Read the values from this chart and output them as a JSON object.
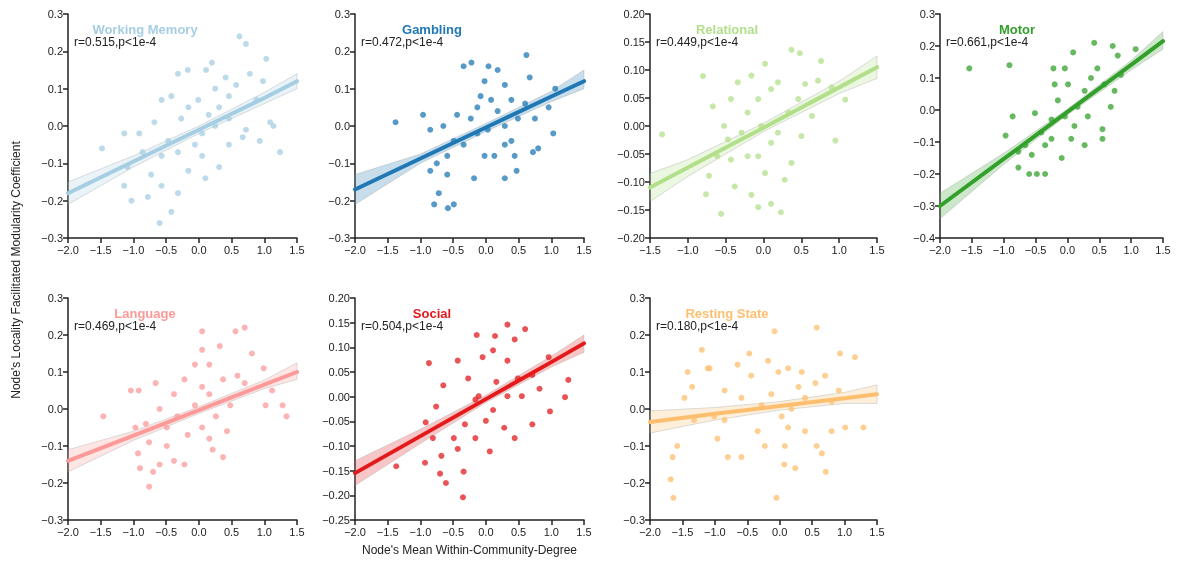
{
  "chart_data": [
    {
      "type": "scatter",
      "title": "Working Memory",
      "annotations": [
        "r=0.515,p<1e-4"
      ],
      "ylabel": "Node's Locality Facilitated Modularity Coefficient",
      "xlim": [
        -2,
        1.5
      ],
      "xticks": [
        {
          "value": -2,
          "label": "−2.0"
        },
        {
          "value": -1.5,
          "label": "−1.5"
        },
        {
          "value": -1,
          "label": "−1.0"
        },
        {
          "value": -0.5,
          "label": "−0.5"
        },
        {
          "value": 0,
          "label": "0.0"
        },
        {
          "value": 0.5,
          "label": "0.5"
        },
        {
          "value": 1,
          "label": "1.0"
        },
        {
          "value": 1.5,
          "label": "1.5"
        }
      ],
      "ylim": [
        -0.3,
        0.3
      ],
      "yticks": [
        {
          "value": -0.3,
          "label": "−0.3"
        },
        {
          "value": -0.2,
          "label": "−0.2"
        },
        {
          "value": -0.1,
          "label": "−0.1"
        },
        {
          "value": 0,
          "label": "0.0"
        },
        0.1,
        0.2,
        0.3
      ],
      "series": [
        {
          "marker": "circle",
          "color": "#a6cee3",
          "x": [
            0.62,
            0.72,
            1.03,
            1.24,
            -1.48,
            -1.14,
            -1.03,
            -0.6,
            -0.42,
            -1.14,
            0.2,
            -0.17,
            -0.32,
            0.11,
            -0.57,
            -0.42,
            -0.68,
            -0.91,
            -0.86,
            -0.57,
            -0.32,
            -0.06,
            0.05,
            0.15,
            0.31,
            0.46,
            0.57,
            0.78,
            0.98,
            0.88,
            1.14,
            1.09,
            0.67,
            0.46,
            0.31,
            0.1,
            -0.16,
            -0.32,
            -0.57,
            -0.78,
            -0.73,
            -0.16,
            -0.27,
            -0.01,
            0.25,
            0.41,
            0.72,
            0.93,
            0.05,
            -0.47,
            -1.09,
            0.25,
            0.46
          ],
          "values": [
            0.24,
            0.22,
            0.18,
            -0.07,
            -0.06,
            -0.02,
            -0.2,
            -0.26,
            -0.23,
            -0.16,
            0.17,
            0.15,
            0.14,
            0.15,
            0.07,
            0.08,
            0.01,
            -0.02,
            -0.07,
            -0.08,
            -0.07,
            -0.05,
            -0.02,
            0.03,
            0.05,
            0.08,
            0.11,
            0.14,
            0.12,
            0.07,
            0,
            0.01,
            -0.03,
            -0.05,
            -0.11,
            -0.14,
            -0.12,
            -0.18,
            -0.16,
            -0.19,
            -0.13,
            0.05,
            0.02,
            0.07,
            0.1,
            0.13,
            -0.01,
            -0.04,
            -0.08,
            -0.04,
            -0.11,
            0,
            0.02
          ]
        },
        {
          "type": "line",
          "color": "#a6cee3",
          "x": [
            -2,
            -1,
            0,
            1,
            1.5
          ],
          "values": [
            -0.18,
            -0.095,
            -0.01,
            0.075,
            0.12
          ],
          "lower": [
            -0.21,
            -0.11,
            -0.02,
            0.06,
            0.1
          ],
          "upper": [
            -0.15,
            -0.08,
            0,
            0.09,
            0.14
          ]
        }
      ]
    },
    {
      "type": "scatter",
      "title": "Gambling",
      "annotations": [
        "r=0.472,p<1e-4"
      ],
      "xlim": [
        -2,
        1.5
      ],
      "xticks": [
        {
          "value": -2,
          "label": "−2.0"
        },
        {
          "value": -1.5,
          "label": "−1.5"
        },
        {
          "value": -1,
          "label": "−1.0"
        },
        {
          "value": -0.5,
          "label": "−0.5"
        },
        {
          "value": 0,
          "label": "0.0"
        },
        {
          "value": 0.5,
          "label": "0.5"
        },
        {
          "value": 1,
          "label": "1.0"
        },
        {
          "value": 1.5,
          "label": "1.5"
        }
      ],
      "ylim": [
        -0.3,
        0.3
      ],
      "yticks": [
        {
          "value": -0.3,
          "label": "−0.3"
        },
        {
          "value": -0.2,
          "label": "−0.2"
        },
        {
          "value": -0.1,
          "label": "−0.1"
        },
        {
          "value": 0,
          "label": "0.0"
        },
        0.1,
        0.2,
        0.3
      ],
      "series": [
        {
          "marker": "circle",
          "color": "#1f78b4",
          "x": [
            -1.38,
            -0.96,
            -0.34,
            -0.22,
            0.04,
            0.62,
            0.18,
            0.67,
            1.06,
            1.03,
            0.96,
            0.8,
            0.72,
            0.47,
            0.29,
            -0.18,
            -0.49,
            -0.58,
            -0.79,
            -0.72,
            -0.85,
            -0.75,
            -0.59,
            -0.85,
            -0.65,
            -0.49,
            -0.34,
            -0.44,
            -0.23,
            -0.13,
            -0.02,
            -0.08,
            0.08,
            0.18,
            0.29,
            0.39,
            0.49,
            0.6,
            0.39,
            0.29,
            0.13,
            -0.02,
            -0.13,
            0.03,
            -0.59,
            0.44,
            0.75,
            0.29
          ],
          "values": [
            0.01,
            0.03,
            0.16,
            0.17,
            0.16,
            0.19,
            0.15,
            0.13,
            0.1,
            -0.02,
            0.05,
            -0.06,
            -0.07,
            -0.12,
            -0.14,
            -0.14,
            -0.21,
            -0.22,
            -0.21,
            -0.18,
            -0.12,
            -0.1,
            -0.08,
            -0.01,
            0,
            -0.04,
            -0.05,
            0.03,
            0.02,
            0.05,
            0.12,
            0.08,
            0.07,
            0.04,
            0,
            -0.04,
            0.02,
            0.06,
            0.07,
            0.11,
            -0.08,
            -0.08,
            -0.02,
            -0.01,
            -0.13,
            -0.08,
            0.02,
            -0.05
          ]
        },
        {
          "type": "line",
          "color": "#1f78b4",
          "x": [
            -2,
            -1,
            0,
            1,
            1.5
          ],
          "values": [
            -0.17,
            -0.087,
            -0.004,
            0.079,
            0.12
          ],
          "lower": [
            -0.21,
            -0.1,
            -0.015,
            0.065,
            0.1
          ],
          "upper": [
            -0.13,
            -0.075,
            0.007,
            0.093,
            0.15
          ]
        }
      ]
    },
    {
      "type": "scatter",
      "title": "Relational",
      "annotations": [
        "r=0.449,p<1e-4"
      ],
      "xlim": [
        -1.5,
        1.5
      ],
      "xticks": [
        {
          "value": -1.5,
          "label": "−1.5"
        },
        {
          "value": -1,
          "label": "−1.0"
        },
        {
          "value": -0.5,
          "label": "−0.5"
        },
        {
          "value": 0,
          "label": "0.0"
        },
        {
          "value": 0.5,
          "label": "0.5"
        },
        {
          "value": 1,
          "label": "1.0"
        },
        {
          "value": 1.5,
          "label": "1.5"
        }
      ],
      "ylim": [
        -0.2,
        0.2
      ],
      "yticks": [
        {
          "value": -0.2,
          "label": "−0.20"
        },
        {
          "value": -0.15,
          "label": "−0.15"
        },
        {
          "value": -0.1,
          "label": "−0.10"
        },
        {
          "value": -0.05,
          "label": "−0.05"
        },
        {
          "value": 0,
          "label": "0.00"
        },
        0.05,
        {
          "value": 0.1,
          "label": "0.10"
        },
        0.15,
        {
          "value": 0.2,
          "label": "0.20"
        }
      ],
      "series": [
        {
          "marker": "circle",
          "color": "#b2df8a",
          "x": [
            -1.34,
            -0.8,
            -0.67,
            0.37,
            0.48,
            0.76,
            1.08,
            0.95,
            0.23,
            -0.56,
            -0.76,
            -0.72,
            -0.61,
            -0.47,
            -0.52,
            -0.43,
            -0.34,
            -0.16,
            0.02,
            0.1,
            -0.07,
            -0.21,
            -0.03,
            0.1,
            -0.07,
            -0.21,
            0.02,
            -0.16,
            -0.38,
            0.28,
            0.37,
            0.19,
            0.33,
            0.46,
            0.55,
            0.72,
            0.9,
            0.64,
            0.5,
            0.19,
            -0.29,
            -0.43,
            0.1,
            -0.07
          ],
          "values": [
            -0.015,
            0.089,
            0.035,
            0.136,
            0.13,
            0.116,
            0.047,
            -0.026,
            -0.154,
            -0.157,
            -0.122,
            -0.089,
            -0.054,
            -0.024,
            0,
            0.048,
            0.078,
            0.09,
            0.111,
            0.066,
            0.048,
            0.024,
            0,
            -0.03,
            -0.054,
            -0.054,
            -0.084,
            -0.123,
            -0.108,
            -0.096,
            -0.066,
            -0.012,
            0.024,
            0.048,
            0.075,
            0.081,
            0.069,
            0.018,
            -0.018,
            0.078,
            -0.012,
            -0.06,
            -0.139,
            -0.145
          ]
        },
        {
          "type": "line",
          "color": "#b2df8a",
          "x": [
            -1.5,
            -1,
            0,
            1,
            1.5
          ],
          "values": [
            -0.11,
            -0.074,
            -0.003,
            0.069,
            0.105
          ],
          "lower": [
            -0.135,
            -0.09,
            -0.01,
            0.058,
            0.085
          ],
          "upper": [
            -0.085,
            -0.06,
            0.005,
            0.08,
            0.125
          ]
        }
      ]
    },
    {
      "type": "scatter",
      "title": "Motor",
      "annotations": [
        "r=0.661,p<1e-4"
      ],
      "xlim": [
        -2,
        1.5
      ],
      "xticks": [
        {
          "value": -2,
          "label": "−2.0"
        },
        {
          "value": -1.5,
          "label": "−1.5"
        },
        {
          "value": -1,
          "label": "−1.0"
        },
        {
          "value": -0.5,
          "label": "−0.5"
        },
        {
          "value": 0,
          "label": "0.0"
        },
        {
          "value": 0.5,
          "label": "0.5"
        },
        {
          "value": 1,
          "label": "1.0"
        },
        {
          "value": 1.5,
          "label": "1.5"
        }
      ],
      "ylim": [
        -0.4,
        0.3
      ],
      "yticks": [
        {
          "value": -0.4,
          "label": "−0.4"
        },
        {
          "value": -0.3,
          "label": "−0.3"
        },
        {
          "value": -0.2,
          "label": "−0.2"
        },
        {
          "value": -0.1,
          "label": "−0.1"
        },
        {
          "value": 0,
          "label": "0.0"
        },
        0.1,
        0.2,
        0.3
      ],
      "series": [
        {
          "marker": "circle",
          "color": "#33a02c",
          "x": [
            -1.54,
            -0.91,
            -0.97,
            -0.86,
            -0.77,
            -0.6,
            -0.35,
            -0.48,
            -0.66,
            -0.77,
            -0.51,
            -0.41,
            -0.25,
            -0.22,
            -0.04,
            0.09,
            0.42,
            0.71,
            1.07,
            0.79,
            0.84,
            0.74,
            0.68,
            0.55,
            0.55,
            0.27,
            0.06,
            -0.09,
            -0.25,
            -0.15,
            0.01,
            0.16,
            0.11,
            0.27,
            0.37,
            0.47,
            0.58,
            0.32,
            -0.04,
            -0.35,
            -0.56,
            -0.2
          ],
          "values": [
            0.13,
            0.14,
            -0.08,
            -0.02,
            -0.18,
            -0.2,
            -0.2,
            -0.2,
            -0.11,
            -0.13,
            -0.01,
            -0.07,
            -0.03,
            0.13,
            0.13,
            0.18,
            0.21,
            0.2,
            0.19,
            0.17,
            0.11,
            0.06,
            0.01,
            -0.06,
            -0.09,
            -0.11,
            -0.09,
            -0.15,
            -0.09,
            0.03,
            0.08,
            0.01,
            -0.05,
            0.06,
            0.1,
            0.13,
            0.08,
            -0.02,
            -0.02,
            -0.11,
            -0.14,
            0.08
          ]
        },
        {
          "type": "line",
          "color": "#33a02c",
          "x": [
            -2,
            -1,
            0,
            1,
            1.5
          ],
          "values": [
            -0.3,
            -0.153,
            -0.006,
            0.141,
            0.215
          ],
          "lower": [
            -0.34,
            -0.17,
            -0.015,
            0.125,
            0.19
          ],
          "upper": [
            -0.26,
            -0.135,
            0.003,
            0.155,
            0.245
          ]
        }
      ]
    },
    {
      "type": "scatter",
      "title": "Language",
      "annotations": [
        "r=0.469,p<1e-4"
      ],
      "xlim": [
        -2,
        1.5
      ],
      "xticks": [
        {
          "value": -2,
          "label": "−2.0"
        },
        {
          "value": -1.5,
          "label": "−1.5"
        },
        {
          "value": -1,
          "label": "−1.0"
        },
        {
          "value": -0.5,
          "label": "−0.5"
        },
        {
          "value": 0,
          "label": "0.0"
        },
        {
          "value": 0.5,
          "label": "0.5"
        },
        {
          "value": 1,
          "label": "1.0"
        },
        {
          "value": 1.5,
          "label": "1.5"
        }
      ],
      "ylim": [
        -0.3,
        0.3
      ],
      "yticks": [
        {
          "value": -0.3,
          "label": "−0.3"
        },
        {
          "value": -0.2,
          "label": "−0.2"
        },
        {
          "value": -0.1,
          "label": "−0.1"
        },
        {
          "value": 0,
          "label": "0.0"
        },
        0.1,
        0.2,
        0.3
      ],
      "series": [
        {
          "marker": "circle",
          "color": "#fb9a99",
          "x": [
            -1.46,
            -1.04,
            -0.92,
            -0.66,
            -0.76,
            -0.7,
            -0.9,
            -0.93,
            0.05,
            0.05,
            0.32,
            0.56,
            0.7,
            0.81,
            0.99,
            1.12,
            1.28,
            1.34,
            1.02,
            0.37,
            0.21,
            -0.22,
            -0.38,
            -0.6,
            -0.49,
            -0.76,
            -0.81,
            -0.6,
            -0.38,
            -0.22,
            -0.06,
            0.16,
            0.37,
            0.59,
            0.7,
            0.48,
            0.26,
            0.05,
            -0.17,
            -0.33,
            -0.06,
            0.16,
            0.05,
            0.43,
            0.16,
            -0.97,
            -0.49
          ],
          "values": [
            -0.02,
            0.05,
            0.05,
            0.07,
            -0.21,
            -0.17,
            -0.16,
            -0.12,
            0.21,
            0.16,
            0.17,
            0.21,
            0.22,
            0.15,
            0.11,
            0.05,
            0.01,
            -0.02,
            0.01,
            -0.13,
            -0.11,
            -0.15,
            -0.14,
            -0.15,
            -0.1,
            -0.09,
            -0.04,
            0,
            0.04,
            0.08,
            0.12,
            0.12,
            0.08,
            0.09,
            0.07,
            0.01,
            -0.02,
            -0.05,
            -0.07,
            -0.02,
            0.01,
            0.04,
            0.06,
            -0.06,
            -0.08,
            -0.05,
            -0.05
          ]
        },
        {
          "type": "line",
          "color": "#fb9a99",
          "x": [
            -2,
            -1,
            0,
            1,
            1.5
          ],
          "values": [
            -0.14,
            -0.072,
            -0.003,
            0.066,
            0.1
          ],
          "lower": [
            -0.17,
            -0.085,
            -0.012,
            0.055,
            0.08
          ],
          "upper": [
            -0.11,
            -0.06,
            0.006,
            0.078,
            0.125
          ]
        }
      ]
    },
    {
      "type": "scatter",
      "title": "Social",
      "annotations": [
        "r=0.504,p<1e-4"
      ],
      "xlabel": "Node's Mean Within-Community-Degree",
      "xlim": [
        -2,
        1.5
      ],
      "xticks": [
        {
          "value": -2,
          "label": "−2.0"
        },
        {
          "value": -1.5,
          "label": "−1.5"
        },
        {
          "value": -1,
          "label": "−1.0"
        },
        {
          "value": -0.5,
          "label": "−0.5"
        },
        {
          "value": 0,
          "label": "0.0"
        },
        {
          "value": 0.5,
          "label": "0.5"
        },
        {
          "value": 1,
          "label": "1.0"
        },
        {
          "value": 1.5,
          "label": "1.5"
        }
      ],
      "ylim": [
        -0.25,
        0.2
      ],
      "yticks": [
        {
          "value": -0.25,
          "label": "−0.25"
        },
        {
          "value": -0.2,
          "label": "−0.20"
        },
        {
          "value": -0.15,
          "label": "−0.15"
        },
        {
          "value": -0.1,
          "label": "−0.10"
        },
        {
          "value": -0.05,
          "label": "−0.05"
        },
        {
          "value": 0,
          "label": "0.00"
        },
        0.05,
        {
          "value": 0.1,
          "label": "0.10"
        },
        0.15,
        {
          "value": 0.2,
          "label": "0.20"
        }
      ],
      "series": [
        {
          "marker": "circle",
          "color": "#e31a1c",
          "x": [
            -1.37,
            -0.87,
            -0.92,
            -0.93,
            -0.61,
            -0.35,
            -0.34,
            0.06,
            0.33,
            0.6,
            -0.14,
            0.14,
            0.96,
            1.26,
            1.21,
            0.98,
            0.71,
            0.44,
            0.28,
            0.11,
            -0.11,
            -0.27,
            -0.43,
            -0.65,
            -0.76,
            -0.81,
            -0.68,
            -0.49,
            -0.32,
            -0.16,
            0,
            -0.05,
            0.11,
            0.33,
            0.49,
            0.55,
            0.71,
            0.82,
            0.33,
            0.16,
            -0.16,
            -0.43,
            -0.7,
            0.44
          ],
          "values": [
            -0.141,
            0.068,
            -0.052,
            -0.134,
            -0.175,
            -0.204,
            -0.152,
            -0.111,
            0.146,
            0.137,
            0.125,
            0.123,
            0.08,
            0.034,
            -0.001,
            -0.03,
            -0.056,
            -0.084,
            -0.063,
            -0.027,
            0.001,
            0.037,
            0.073,
            0.023,
            -0.02,
            -0.084,
            -0.12,
            -0.084,
            -0.056,
            -0.084,
            -0.049,
            0.08,
            0.094,
            0.073,
            0.037,
            0.001,
            0.044,
            0.016,
            0.001,
            0.03,
            -0.006,
            -0.106,
            -0.156,
            0.116
          ]
        },
        {
          "type": "line",
          "color": "#e31a1c",
          "x": [
            -2,
            -1,
            0,
            1,
            1.5
          ],
          "values": [
            -0.155,
            -0.08,
            -0.005,
            0.07,
            0.108
          ],
          "lower": [
            -0.18,
            -0.095,
            -0.012,
            0.06,
            0.09
          ],
          "upper": [
            -0.13,
            -0.066,
            0.003,
            0.082,
            0.125
          ]
        }
      ]
    },
    {
      "type": "scatter",
      "title": "Resting State",
      "annotations": [
        "r=0.180,p<1e-4"
      ],
      "xlim": [
        -2,
        1.5
      ],
      "xticks": [
        {
          "value": -2,
          "label": "−2.0"
        },
        {
          "value": -1.5,
          "label": "−1.5"
        },
        {
          "value": -1,
          "label": "−1.0"
        },
        {
          "value": -0.5,
          "label": "−0.5"
        },
        {
          "value": 0,
          "label": "0.0"
        },
        {
          "value": 0.5,
          "label": "0.5"
        },
        {
          "value": 1,
          "label": "1.0"
        },
        {
          "value": 1.5,
          "label": "1.5"
        }
      ],
      "ylim": [
        -0.3,
        0.3
      ],
      "yticks": [
        {
          "value": -0.3,
          "label": "−0.3"
        },
        {
          "value": -0.2,
          "label": "−0.2"
        },
        {
          "value": -0.1,
          "label": "−0.1"
        },
        {
          "value": 0,
          "label": "0.0"
        },
        0.1,
        0.2,
        0.3
      ],
      "series": [
        {
          "marker": "circle",
          "color": "#fdbf6f",
          "x": [
            -1.68,
            -1.64,
            -1.65,
            -1.58,
            -1.47,
            -1.35,
            -1.2,
            -1.11,
            -1.42,
            -1.08,
            -1.32,
            -0.96,
            -0.8,
            -0.59,
            -0.65,
            -0.47,
            -0.44,
            -0.34,
            -0.23,
            -0.18,
            -0.08,
            -0.05,
            0.07,
            0.24,
            0.57,
            0.8,
            0.93,
            1.16,
            1.29,
            1.01,
            0.57,
            0.71,
            0.65,
            0.39,
            0.29,
            0.13,
            -0.02,
            -0.13,
            0.03,
            0.13,
            0.08,
            0.34,
            0.55,
            0.7,
            0.91,
            -0.59,
            -0.85,
            -1.01,
            -0.28,
            0.18,
            0.39,
            0.8,
            -0.85
          ],
          "values": [
            -0.19,
            -0.24,
            -0.13,
            -0.1,
            0.03,
            0.06,
            0.16,
            0.11,
            0.1,
            0.11,
            -0.03,
            -0.08,
            -0.13,
            -0.13,
            0.12,
            0.15,
            0.09,
            -0.06,
            -0.1,
            0.13,
            0.21,
            -0.24,
            -0.15,
            -0.16,
            0.22,
            0.02,
            0.15,
            0.14,
            -0.05,
            -0.05,
            -0.1,
            -0.17,
            -0.12,
            -0.06,
            0.06,
            0.11,
            0.1,
            0.04,
            -0.02,
            -0.05,
            -0.1,
            0.1,
            0.07,
            0.09,
            0.05,
            0.03,
            0.05,
            -0.02,
            0.01,
            0,
            0.03,
            -0.06,
            -0.03
          ]
        },
        {
          "type": "line",
          "color": "#fdbf6f",
          "x": [
            -2,
            -1,
            0,
            1,
            1.5
          ],
          "values": [
            -0.035,
            -0.013,
            0.008,
            0.029,
            0.04
          ],
          "lower": [
            -0.065,
            -0.03,
            -0.003,
            0.015,
            0.015
          ],
          "upper": [
            -0.005,
            0.004,
            0.02,
            0.045,
            0.065
          ]
        }
      ]
    }
  ]
}
